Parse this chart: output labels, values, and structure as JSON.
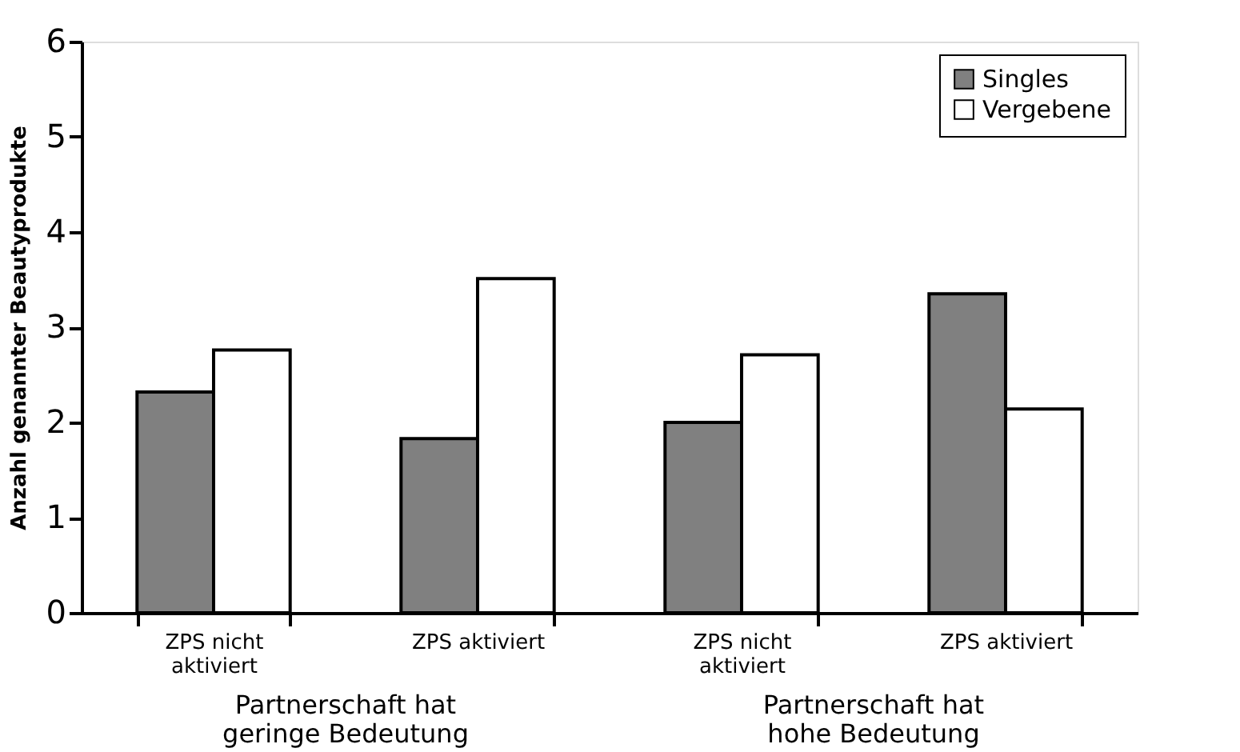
{
  "chart_data": {
    "type": "bar",
    "ylabel": "Anzahl genannter Beautyprodukte",
    "categories": [
      "ZPS nicht aktiviert",
      "ZPS aktiviert",
      "ZPS nicht aktiviert",
      "ZPS aktiviert"
    ],
    "series": [
      {
        "name": "Singles",
        "color": "#808080",
        "values": [
          2.32,
          1.83,
          2.0,
          3.35
        ]
      },
      {
        "name": "Vergebene",
        "color": "#ffffff",
        "values": [
          2.76,
          3.51,
          2.71,
          2.14
        ]
      }
    ],
    "annotations": [
      "Partnerschaft hat geringe Bedeutung",
      "Partnerschaft hat hohe Bedeutung"
    ],
    "ylim": [
      0,
      6
    ],
    "yticks": [
      0,
      1,
      2,
      3,
      4,
      5,
      6
    ],
    "grid": false,
    "legend": "top right"
  }
}
